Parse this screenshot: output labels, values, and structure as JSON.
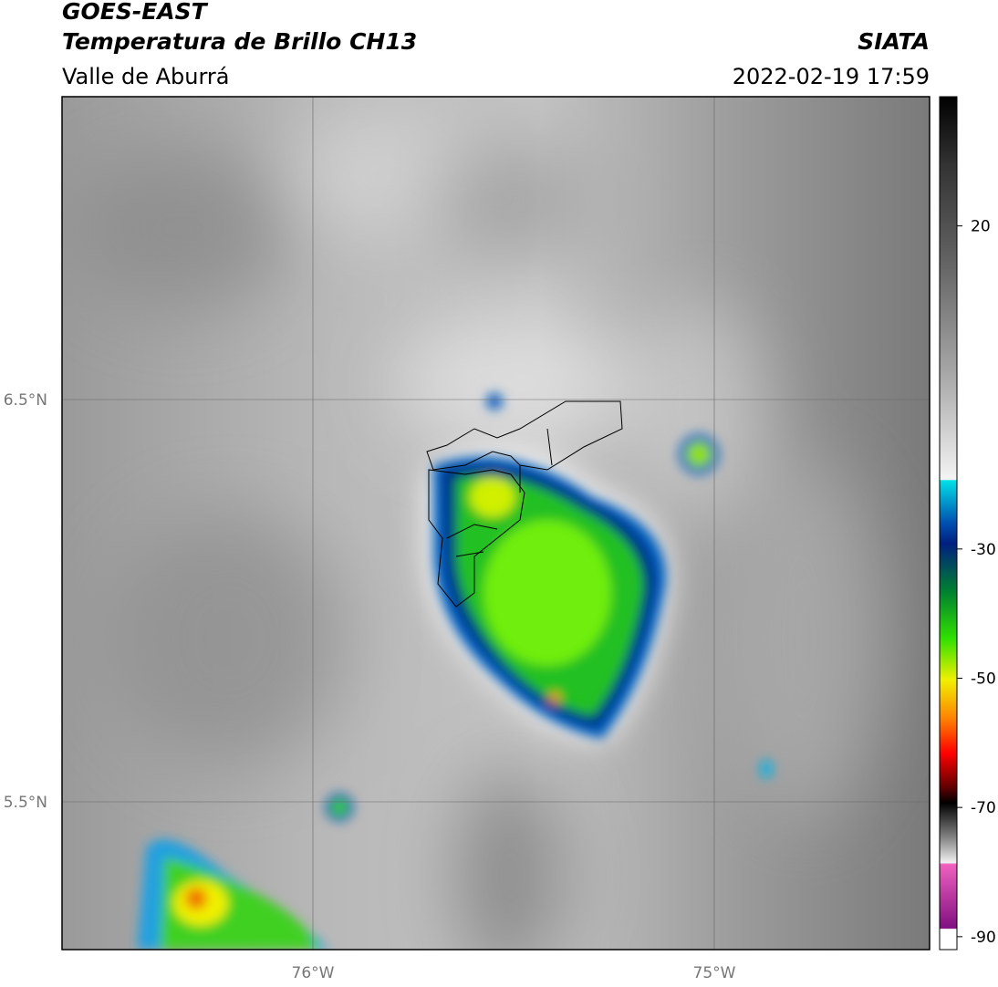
{
  "header": {
    "title": "GOES-EAST",
    "subtitle": "Temperatura de Brillo CH13",
    "region": "Valle de Aburrá",
    "source": "SIATA",
    "datetime": "2022-02-19 17:59"
  },
  "map": {
    "lat_labels": [
      "6.5°N",
      "5.5°N"
    ],
    "lon_labels": [
      "76°W",
      "75°W"
    ]
  },
  "colorbar": {
    "range": [
      -92,
      40
    ],
    "ticks": [
      20,
      -30,
      -50,
      -70,
      -90
    ]
  }
}
